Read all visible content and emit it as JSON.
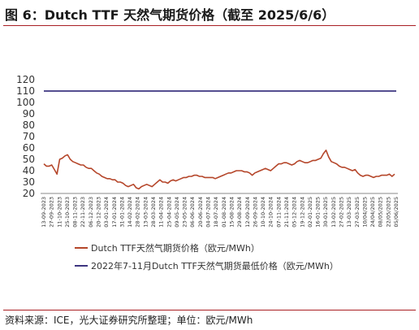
{
  "title": "图 6：Dutch TTF 天然气期货价格（截至 2025/6/6）",
  "source": "资料来源：ICE，光大证券研究所整理；单位：欧元/MWh",
  "chart_data": {
    "type": "line",
    "ylim": [
      20,
      120
    ],
    "yticks": [
      20,
      30,
      40,
      50,
      60,
      70,
      80,
      90,
      100,
      110,
      120
    ],
    "grid": false,
    "legend_placement": "bottom",
    "x_tick_labels": [
      "13-09-2023",
      "27-09-2023",
      "11-10-2023",
      "25-10-2023",
      "08-11-2023",
      "22-11-2023",
      "06-12-2023",
      "20-12-2023",
      "03-01-2024",
      "17-01-2024",
      "31-01-2024",
      "14-02-2024",
      "28-02-2024",
      "13-03-2024",
      "28-03-2024",
      "11-04-2024",
      "25-04-2024",
      "09-05-2024",
      "23-05-2024",
      "06-06-2024",
      "20-06-2024",
      "04-07-2024",
      "18-07-2024",
      "01-08-2024",
      "15-08-2024",
      "29-08-2024",
      "12-09-2024",
      "26-09-2024",
      "10-10-2024",
      "24-10-2024",
      "07-11-2024",
      "21-11-2024",
      "05-12-2024",
      "19-12-2024",
      "02-01-2025",
      "16-01-2025",
      "30-01-2025",
      "13-02-2025",
      "27-02-2025",
      "13-03-2025",
      "27-03-2025",
      "10/04/2025",
      "24/04/2025",
      "08/05/2025",
      "22/05/2025",
      "05/06/2025"
    ],
    "series": [
      {
        "name": "Dutch TTF天然气期货价格（欧元/MWh）",
        "color": "#b5462a",
        "values": [
          46,
          44,
          44,
          45,
          41,
          37,
          50,
          51,
          53,
          54,
          50,
          48,
          47,
          46,
          45,
          45,
          43,
          42,
          42,
          40,
          38,
          37,
          35,
          34,
          33,
          33,
          32,
          32,
          30,
          30,
          29,
          27,
          26,
          27,
          28,
          25,
          24,
          26,
          27,
          28,
          27,
          26,
          28,
          30,
          32,
          30,
          30,
          29,
          31,
          32,
          31,
          32,
          33,
          34,
          34,
          35,
          35,
          36,
          36,
          35,
          35,
          34,
          34,
          34,
          34,
          33,
          34,
          35,
          36,
          37,
          38,
          38,
          39,
          40,
          40,
          40,
          39,
          39,
          38,
          36,
          38,
          39,
          40,
          41,
          42,
          41,
          40,
          42,
          44,
          46,
          46,
          47,
          47,
          46,
          45,
          46,
          48,
          49,
          48,
          47,
          47,
          48,
          49,
          49,
          50,
          51,
          55,
          58,
          52,
          48,
          47,
          46,
          44,
          43,
          43,
          42,
          41,
          40,
          41,
          38,
          36,
          35,
          36,
          36,
          35,
          34,
          35,
          35,
          36,
          36,
          36,
          37,
          35,
          37
        ]
      },
      {
        "name": "2022年7-11月Dutch TTF天然气期货最低价格（欧元/MWh）",
        "color": "#3d3580",
        "values": [
          110
        ]
      }
    ]
  }
}
